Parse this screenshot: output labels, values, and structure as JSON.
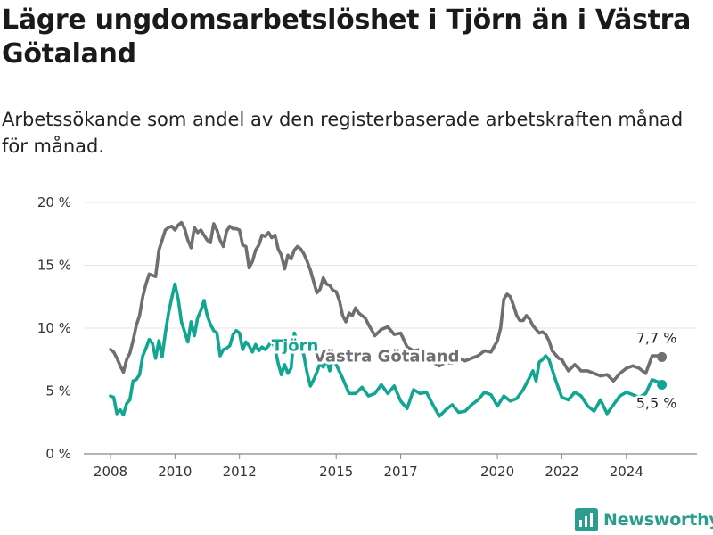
{
  "header": {
    "title": "Lägre ungdomsarbetslöshet i Tjörn än i Västra Götaland",
    "subtitle": "Arbetssökande som andel av den registerbaserade arbetskraften månad för månad."
  },
  "footer": {
    "brand": "Newsworthy"
  },
  "colors": {
    "vg": "#6e6e73",
    "tjorn": "#12a591",
    "grid": "#e6e6e6",
    "axis": "#888888"
  },
  "chart_data": {
    "type": "line",
    "title": "Lägre ungdomsarbetslöshet i Tjörn än i Västra Götaland",
    "subtitle": "Arbetssökande som andel av den registerbaserade arbetskraften månad för månad.",
    "ylim": [
      0,
      20
    ],
    "yticks": [
      0,
      5,
      10,
      15,
      20
    ],
    "ytick_labels": [
      "0 %",
      "5 %",
      "10 %",
      "15 %",
      "20 %"
    ],
    "xlim": [
      2008.0,
      2025.25
    ],
    "xticks": [
      2008,
      2010,
      2012,
      2015,
      2017,
      2020,
      2022,
      2024
    ],
    "xtick_labels": [
      "2008",
      "2010",
      "2012",
      "2015",
      "2017",
      "2020",
      "2022",
      "2024"
    ],
    "grid": "horizontal",
    "series": [
      {
        "name": "Västra Götaland",
        "color": "#6e6e73",
        "end_label": "7,7 %",
        "end_value": 7.7,
        "x": [
          2008.0,
          2008.1,
          2008.2,
          2008.3,
          2008.4,
          2008.5,
          2008.6,
          2008.7,
          2008.8,
          2008.9,
          2009.0,
          2009.1,
          2009.2,
          2009.3,
          2009.4,
          2009.5,
          2009.6,
          2009.7,
          2009.8,
          2009.9,
          2010.0,
          2010.1,
          2010.2,
          2010.3,
          2010.4,
          2010.5,
          2010.6,
          2010.7,
          2010.8,
          2010.9,
          2011.0,
          2011.1,
          2011.2,
          2011.3,
          2011.4,
          2011.5,
          2011.6,
          2011.7,
          2011.8,
          2011.9,
          2012.0,
          2012.1,
          2012.2,
          2012.3,
          2012.4,
          2012.5,
          2012.6,
          2012.7,
          2012.8,
          2012.9,
          2013.0,
          2013.1,
          2013.2,
          2013.3,
          2013.4,
          2013.5,
          2013.6,
          2013.7,
          2013.8,
          2013.9,
          2014.0,
          2014.1,
          2014.2,
          2014.3,
          2014.4,
          2014.5,
          2014.6,
          2014.7,
          2014.8,
          2014.9,
          2015.0,
          2015.1,
          2015.2,
          2015.3,
          2015.4,
          2015.5,
          2015.6,
          2015.7,
          2015.8,
          2015.9,
          2016.0,
          2016.2,
          2016.4,
          2016.6,
          2016.8,
          2017.0,
          2017.2,
          2017.4,
          2017.6,
          2017.8,
          2018.0,
          2018.2,
          2018.4,
          2018.6,
          2018.8,
          2019.0,
          2019.2,
          2019.4,
          2019.6,
          2019.8,
          2020.0,
          2020.1,
          2020.2,
          2020.3,
          2020.4,
          2020.5,
          2020.6,
          2020.7,
          2020.8,
          2020.9,
          2021.0,
          2021.1,
          2021.2,
          2021.3,
          2021.4,
          2021.5,
          2021.6,
          2021.7,
          2021.8,
          2021.9,
          2022.0,
          2022.2,
          2022.4,
          2022.6,
          2022.8,
          2023.0,
          2023.2,
          2023.4,
          2023.6,
          2023.8,
          2024.0,
          2024.2,
          2024.4,
          2024.6,
          2024.8,
          2025.0,
          2025.1
        ],
        "values": [
          8.3,
          8.1,
          7.6,
          7.0,
          6.5,
          7.5,
          8.0,
          9.0,
          10.2,
          11.0,
          12.5,
          13.5,
          14.3,
          14.2,
          14.1,
          16.2,
          17.0,
          17.8,
          18.0,
          18.1,
          17.8,
          18.2,
          18.4,
          17.9,
          17.0,
          16.4,
          18.0,
          17.6,
          17.8,
          17.4,
          17.0,
          16.8,
          18.3,
          17.8,
          17.0,
          16.5,
          17.7,
          18.1,
          17.9,
          17.9,
          17.8,
          16.6,
          16.5,
          14.8,
          15.3,
          16.2,
          16.6,
          17.4,
          17.3,
          17.6,
          17.2,
          17.4,
          16.3,
          15.8,
          14.7,
          15.8,
          15.5,
          16.2,
          16.5,
          16.3,
          15.9,
          15.3,
          14.6,
          13.7,
          12.8,
          13.1,
          14.0,
          13.5,
          13.4,
          13.0,
          12.9,
          12.2,
          11.0,
          10.5,
          11.2,
          11.0,
          11.6,
          11.2,
          11.0,
          10.8,
          10.3,
          9.4,
          9.9,
          10.1,
          9.5,
          9.6,
          8.5,
          8.2,
          8.3,
          7.7,
          7.3,
          7.0,
          7.3,
          7.2,
          7.6,
          7.4,
          7.6,
          7.8,
          8.2,
          8.1,
          9.0,
          10.0,
          12.3,
          12.7,
          12.5,
          11.8,
          11.0,
          10.6,
          10.6,
          11.0,
          10.7,
          10.2,
          9.9,
          9.6,
          9.7,
          9.5,
          9.0,
          8.2,
          7.9,
          7.6,
          7.5,
          6.6,
          7.1,
          6.6,
          6.6,
          6.4,
          6.2,
          6.3,
          5.8,
          6.4,
          6.8,
          7.0,
          6.8,
          6.4,
          7.8,
          7.8,
          7.7
        ]
      },
      {
        "name": "Tjörn",
        "color": "#12a591",
        "end_label": "5,5 %",
        "end_value": 5.5,
        "x": [
          2008.0,
          2008.1,
          2008.2,
          2008.3,
          2008.4,
          2008.5,
          2008.6,
          2008.7,
          2008.8,
          2008.9,
          2009.0,
          2009.1,
          2009.2,
          2009.3,
          2009.4,
          2009.5,
          2009.6,
          2009.7,
          2009.8,
          2009.9,
          2010.0,
          2010.1,
          2010.2,
          2010.3,
          2010.4,
          2010.5,
          2010.6,
          2010.7,
          2010.8,
          2010.9,
          2011.0,
          2011.1,
          2011.2,
          2011.3,
          2011.4,
          2011.5,
          2011.6,
          2011.7,
          2011.8,
          2011.9,
          2012.0,
          2012.1,
          2012.2,
          2012.3,
          2012.4,
          2012.5,
          2012.6,
          2012.7,
          2012.8,
          2012.9,
          2013.0,
          2013.1,
          2013.2,
          2013.3,
          2013.4,
          2013.5,
          2013.6,
          2013.7,
          2013.8,
          2013.9,
          2014.0,
          2014.1,
          2014.2,
          2014.3,
          2014.4,
          2014.5,
          2014.6,
          2014.7,
          2014.8,
          2014.9,
          2015.0,
          2015.2,
          2015.4,
          2015.6,
          2015.8,
          2016.0,
          2016.2,
          2016.4,
          2016.6,
          2016.8,
          2017.0,
          2017.2,
          2017.4,
          2017.6,
          2017.8,
          2018.0,
          2018.2,
          2018.4,
          2018.6,
          2018.8,
          2019.0,
          2019.2,
          2019.4,
          2019.6,
          2019.8,
          2020.0,
          2020.2,
          2020.4,
          2020.6,
          2020.8,
          2021.0,
          2021.1,
          2021.2,
          2021.3,
          2021.4,
          2021.5,
          2021.6,
          2021.7,
          2021.8,
          2021.9,
          2022.0,
          2022.2,
          2022.4,
          2022.6,
          2022.8,
          2023.0,
          2023.2,
          2023.4,
          2023.6,
          2023.8,
          2024.0,
          2024.2,
          2024.4,
          2024.6,
          2024.8,
          2025.0,
          2025.1
        ],
        "values": [
          4.6,
          4.5,
          3.2,
          3.5,
          3.1,
          4.0,
          4.3,
          5.8,
          5.9,
          6.3,
          7.8,
          8.4,
          9.1,
          8.8,
          7.6,
          9.0,
          7.7,
          9.6,
          11.2,
          12.4,
          13.5,
          12.3,
          10.5,
          9.7,
          8.9,
          10.5,
          9.4,
          10.8,
          11.4,
          12.2,
          11.0,
          10.3,
          9.8,
          9.6,
          7.8,
          8.3,
          8.4,
          8.6,
          9.5,
          9.8,
          9.6,
          8.3,
          8.9,
          8.6,
          8.1,
          8.7,
          8.2,
          8.5,
          8.3,
          8.6,
          9.0,
          8.4,
          7.2,
          6.3,
          7.1,
          6.4,
          6.8,
          9.6,
          8.9,
          8.7,
          7.8,
          6.4,
          5.4,
          5.9,
          6.5,
          7.2,
          6.9,
          7.5,
          6.6,
          7.6,
          7.1,
          6.0,
          4.8,
          4.8,
          5.3,
          4.6,
          4.8,
          5.5,
          4.8,
          5.4,
          4.2,
          3.6,
          5.1,
          4.8,
          4.9,
          3.9,
          3.0,
          3.5,
          3.9,
          3.3,
          3.4,
          3.9,
          4.3,
          4.9,
          4.7,
          3.8,
          4.6,
          4.2,
          4.4,
          5.1,
          6.1,
          6.6,
          5.8,
          7.3,
          7.5,
          7.8,
          7.5,
          6.7,
          5.9,
          5.2,
          4.5,
          4.3,
          4.9,
          4.6,
          3.8,
          3.4,
          4.3,
          3.2,
          3.9,
          4.6,
          4.9,
          4.7,
          4.5,
          4.8,
          5.9,
          5.7,
          5.5
        ]
      }
    ]
  }
}
